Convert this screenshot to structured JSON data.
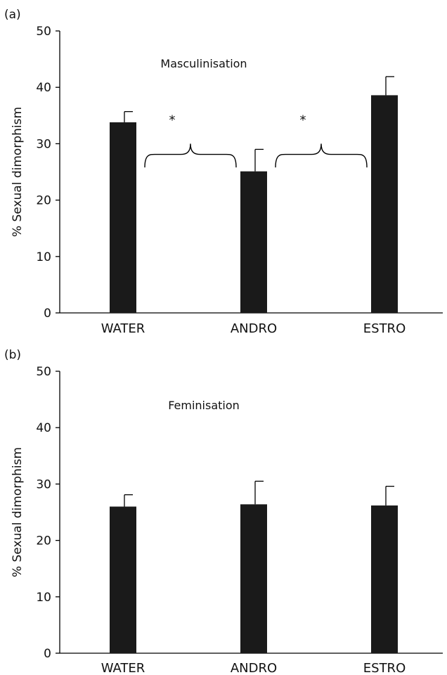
{
  "chart_data": [
    {
      "type": "bar",
      "panel": "(a)",
      "title": "Masculinisation",
      "xlabel": "",
      "ylabel": "% Sexual dimorphism",
      "ylim": [
        0,
        50
      ],
      "yticks": [
        0,
        10,
        20,
        30,
        40,
        50
      ],
      "categories": [
        "WATER",
        "ANDRO",
        "ESTRO"
      ],
      "values": [
        33.8,
        25.1,
        38.6
      ],
      "errors": [
        1.9,
        3.9,
        3.3
      ],
      "colors": {
        "bar": "#1a1a1a"
      },
      "annotations": [
        {
          "text": "*",
          "between": [
            "WATER",
            "ANDRO"
          ]
        },
        {
          "text": "*",
          "between": [
            "ANDRO",
            "ESTRO"
          ]
        }
      ]
    },
    {
      "type": "bar",
      "panel": "(b)",
      "title": "Feminisation",
      "xlabel": "",
      "ylabel": "% Sexual dimorphism",
      "ylim": [
        0,
        50
      ],
      "yticks": [
        0,
        10,
        20,
        30,
        40,
        50
      ],
      "categories": [
        "WATER",
        "ANDRO",
        "ESTRO"
      ],
      "values": [
        26.0,
        26.4,
        26.2
      ],
      "errors": [
        2.1,
        4.1,
        3.4
      ],
      "colors": {
        "bar": "#1a1a1a"
      },
      "annotations": []
    }
  ]
}
